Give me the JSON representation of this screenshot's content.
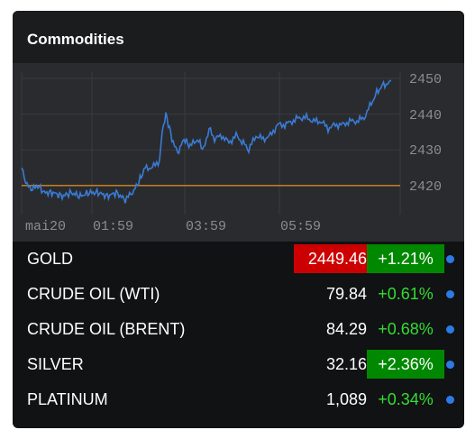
{
  "widget": {
    "title": "Commodities"
  },
  "chart": {
    "y_ticks": [
      "2450",
      "2440",
      "2430",
      "2420"
    ],
    "x_ticks": [
      "mai20",
      "01:59",
      "03:59",
      "05:59"
    ],
    "reference_value": 2420,
    "line_color": "#3a7bd5",
    "reference_color": "#d08a20"
  },
  "rows": [
    {
      "name": "GOLD",
      "price": "2449.46",
      "change": "+1.21%",
      "price_highlight": true,
      "change_highlight": true
    },
    {
      "name": "CRUDE OIL (WTI)",
      "price": "79.84",
      "change": "+0.61%",
      "price_highlight": false,
      "change_highlight": false
    },
    {
      "name": "CRUDE OIL (BRENT)",
      "price": "84.29",
      "change": "+0.68%",
      "price_highlight": false,
      "change_highlight": false
    },
    {
      "name": "SILVER",
      "price": "32.16",
      "change": "+2.36%",
      "price_highlight": false,
      "change_highlight": true
    },
    {
      "name": "PLATINUM",
      "price": "1,089",
      "change": "+0.34%",
      "price_highlight": false,
      "change_highlight": false
    }
  ],
  "colors": {
    "up": "#33dd33",
    "price_highlight_bg": "#cc0000",
    "change_highlight_bg": "#008800",
    "indicator": "#2c7be5"
  }
}
